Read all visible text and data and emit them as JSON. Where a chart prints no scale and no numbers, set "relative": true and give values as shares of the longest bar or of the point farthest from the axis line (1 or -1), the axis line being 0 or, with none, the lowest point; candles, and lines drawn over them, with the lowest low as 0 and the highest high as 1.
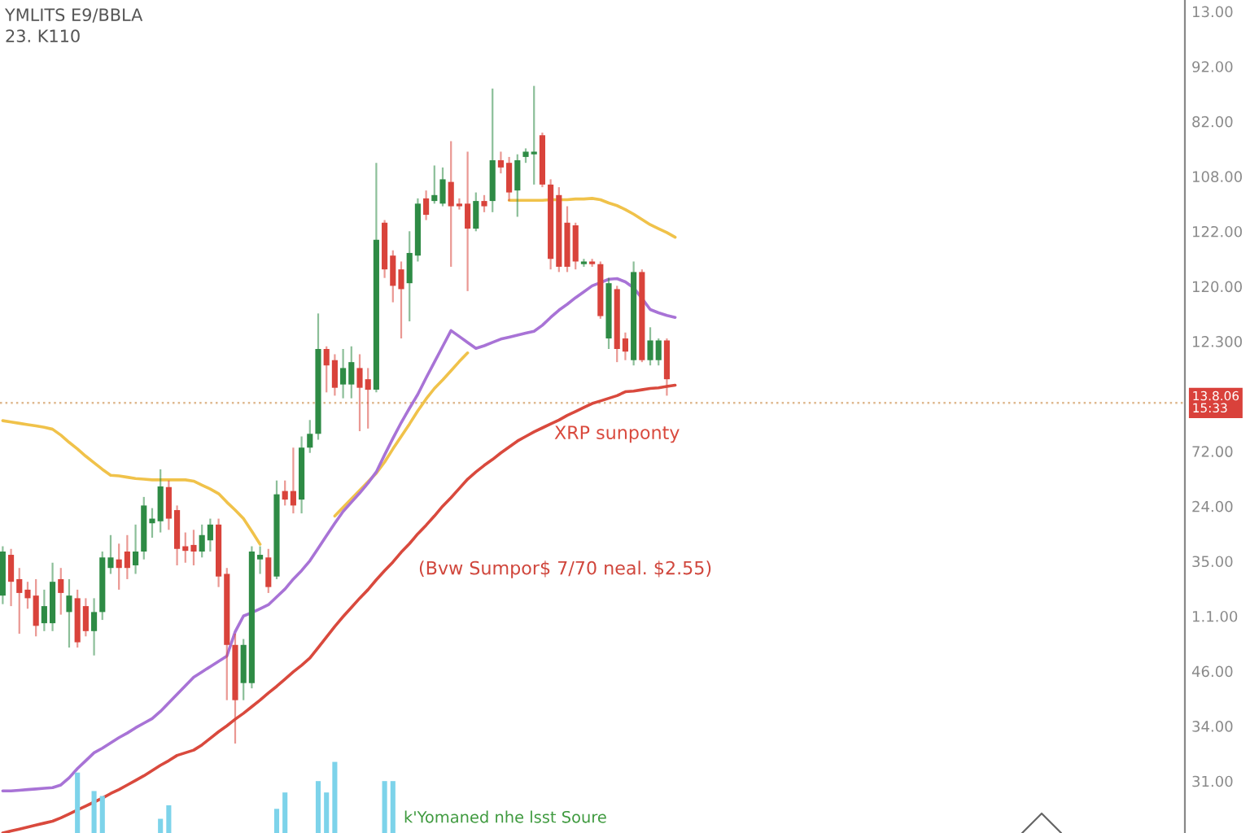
{
  "chart_data": [
    {
      "type": "candlestick",
      "title": "YMLITS E9/BBLA",
      "subtitle": "23. K110",
      "relative": true,
      "categories": [
        null,
        null,
        null,
        null,
        null,
        null,
        null,
        null,
        null,
        null,
        null,
        null,
        null,
        null,
        null,
        null,
        null,
        null,
        null,
        null,
        null,
        null,
        null,
        null,
        null,
        null,
        null,
        null,
        null,
        null,
        null,
        null,
        null,
        null,
        null,
        null,
        null,
        null,
        null,
        null,
        null,
        null,
        null,
        null,
        null,
        null,
        null,
        null,
        null,
        null,
        null,
        null,
        null,
        null,
        null,
        null,
        null,
        null,
        null,
        null,
        null,
        null,
        null,
        null,
        null,
        null,
        null,
        null,
        null,
        null,
        null,
        null,
        null,
        null,
        null,
        null,
        null,
        null,
        null,
        null,
        null,
        null
      ],
      "ohlc": [
        [
          0.225,
          0.3,
          0.212,
          0.292
        ],
        [
          0.287,
          0.296,
          0.209,
          0.246
        ],
        [
          0.25,
          0.267,
          0.167,
          0.229
        ],
        [
          0.234,
          0.246,
          0.205,
          0.221
        ],
        [
          0.225,
          0.25,
          0.163,
          0.179
        ],
        [
          0.183,
          0.234,
          0.171,
          0.209
        ],
        [
          0.183,
          0.275,
          0.171,
          0.246
        ],
        [
          0.25,
          0.267,
          0.196,
          0.229
        ],
        [
          0.2,
          0.25,
          0.146,
          0.225
        ],
        [
          0.221,
          0.234,
          0.146,
          0.154
        ],
        [
          0.209,
          0.221,
          0.163,
          0.171
        ],
        [
          0.171,
          0.221,
          0.134,
          0.2
        ],
        [
          0.2,
          0.292,
          0.188,
          0.283
        ],
        [
          0.267,
          0.317,
          0.258,
          0.283
        ],
        [
          0.28,
          0.304,
          0.234,
          0.267
        ],
        [
          0.292,
          0.317,
          0.25,
          0.267
        ],
        [
          0.271,
          0.333,
          0.258,
          0.292
        ],
        [
          0.292,
          0.375,
          0.28,
          0.362
        ],
        [
          0.335,
          0.358,
          0.313,
          0.342
        ],
        [
          0.338,
          0.417,
          0.321,
          0.391
        ],
        [
          0.39,
          0.4,
          0.325,
          0.342
        ],
        [
          0.355,
          0.362,
          0.271,
          0.296
        ],
        [
          0.3,
          0.321,
          0.275,
          0.293
        ],
        [
          0.302,
          0.325,
          0.271,
          0.292
        ],
        [
          0.292,
          0.333,
          0.283,
          0.317
        ],
        [
          0.309,
          0.342,
          0.292,
          0.333
        ],
        [
          0.333,
          0.342,
          0.238,
          0.254
        ],
        [
          0.258,
          0.267,
          0.066,
          0.15
        ],
        [
          0.15,
          0.167,
          0.0,
          0.066
        ],
        [
          0.092,
          0.159,
          0.066,
          0.15
        ],
        [
          0.092,
          0.3,
          0.084,
          0.292
        ],
        [
          0.28,
          0.3,
          0.258,
          0.287
        ],
        [
          0.283,
          0.296,
          0.229,
          0.238
        ],
        [
          0.254,
          0.4,
          0.25,
          0.379
        ],
        [
          0.384,
          0.4,
          0.362,
          0.371
        ],
        [
          0.384,
          0.45,
          0.35,
          0.362
        ],
        [
          0.371,
          0.467,
          0.35,
          0.45
        ],
        [
          0.45,
          0.492,
          0.442,
          0.471
        ],
        [
          0.471,
          0.654,
          0.462,
          0.6
        ],
        [
          0.6,
          0.604,
          0.534,
          0.575
        ],
        [
          0.583,
          0.592,
          0.529,
          0.541
        ],
        [
          0.546,
          0.6,
          0.525,
          0.571
        ],
        [
          0.546,
          0.604,
          0.525,
          0.58
        ],
        [
          0.571,
          0.592,
          0.475,
          0.541
        ],
        [
          0.554,
          0.571,
          0.479,
          0.538
        ],
        [
          0.538,
          0.883,
          0.534,
          0.766
        ],
        [
          0.792,
          0.796,
          0.708,
          0.721
        ],
        [
          0.742,
          0.75,
          0.671,
          0.696
        ],
        [
          0.721,
          0.733,
          0.616,
          0.691
        ],
        [
          0.7,
          0.779,
          0.642,
          0.746
        ],
        [
          0.742,
          0.829,
          0.733,
          0.821
        ],
        [
          0.829,
          0.841,
          0.796,
          0.804
        ],
        [
          0.825,
          0.879,
          0.821,
          0.834
        ],
        [
          0.821,
          0.876,
          0.817,
          0.858
        ],
        [
          0.854,
          0.916,
          0.725,
          0.817
        ],
        [
          0.821,
          0.829,
          0.812,
          0.817
        ],
        [
          0.821,
          0.9,
          0.688,
          0.783
        ],
        [
          0.783,
          0.838,
          0.779,
          0.825
        ],
        [
          0.825,
          0.834,
          0.808,
          0.817
        ],
        [
          0.825,
          0.996,
          0.808,
          0.887
        ],
        [
          0.887,
          0.9,
          0.867,
          0.876
        ],
        [
          0.883,
          0.892,
          0.825,
          0.838
        ],
        [
          0.841,
          0.896,
          0.801,
          0.887
        ],
        [
          0.892,
          0.905,
          0.883,
          0.9
        ],
        [
          0.896,
          1.0,
          0.85,
          0.9
        ],
        [
          0.925,
          0.929,
          0.846,
          0.85
        ],
        [
          0.85,
          0.858,
          0.721,
          0.737
        ],
        [
          0.834,
          0.846,
          0.717,
          0.725
        ],
        [
          0.792,
          0.817,
          0.717,
          0.725
        ],
        [
          0.788,
          0.792,
          0.721,
          0.733
        ],
        [
          0.729,
          0.737,
          0.725,
          0.733
        ],
        [
          0.733,
          0.737,
          0.725,
          0.729
        ],
        [
          0.729,
          0.733,
          0.646,
          0.65
        ],
        [
          0.616,
          0.708,
          0.6,
          0.7
        ],
        [
          0.691,
          0.696,
          0.58,
          0.6
        ],
        [
          0.616,
          0.625,
          0.583,
          0.596
        ],
        [
          0.583,
          0.733,
          0.575,
          0.717
        ],
        [
          0.717,
          0.721,
          0.58,
          0.583
        ],
        [
          0.583,
          0.633,
          0.575,
          0.613
        ],
        [
          0.583,
          0.616,
          0.575,
          0.613
        ],
        [
          0.613,
          0.616,
          0.529,
          0.554
        ],
        null
      ],
      "colors": [
        "#2e8b45",
        "#d9433b",
        "#d9433b",
        "#d9433b",
        "#d9433b",
        "#2e8b45",
        "#2e8b45",
        "#d9433b",
        "#2e8b45",
        "#d9433b",
        "#d9433b",
        "#2e8b45",
        "#2e8b45",
        "#2e8b45",
        "#d9433b",
        "#d9433b",
        "#2e8b45",
        "#2e8b45",
        "#2e8b45",
        "#2e8b45",
        "#d9433b",
        "#d9433b",
        "#d9433b",
        "#d9433b",
        "#2e8b45",
        "#2e8b45",
        "#d9433b",
        "#d9433b",
        "#d9433b",
        "#2e8b45",
        "#2e8b45",
        "#2e8b45",
        "#d9433b",
        "#2e8b45",
        "#d9433b",
        "#d9433b",
        "#2e8b45",
        "#2e8b45",
        "#2e8b45",
        "#d9433b",
        "#d9433b",
        "#2e8b45",
        "#2e8b45",
        "#d9433b",
        "#d9433b",
        "#2e8b45",
        "#d9433b",
        "#d9433b",
        "#d9433b",
        "#2e8b45",
        "#2e8b45",
        "#d9433b",
        "#2e8b45",
        "#2e8b45",
        "#d9433b",
        "#d9433b",
        "#d9433b",
        "#2e8b45",
        "#d9433b",
        "#2e8b45",
        "#d9433b",
        "#d9433b",
        "#2e8b45",
        "#2e8b45",
        "#2e8b45",
        "#d9433b",
        "#d9433b",
        "#d9433b",
        "#d9433b",
        "#d9433b",
        "#2e8b45",
        "#d9433b",
        "#d9433b",
        "#2e8b45",
        "#d9433b",
        "#d9433b",
        "#2e8b45",
        "#d9433b",
        "#2e8b45",
        "#2e8b45",
        "#d9433b",
        null
      ],
      "series": [
        {
          "type": "line",
          "color": "#f0c24a",
          "values": [
            0.491,
            0.489,
            0.487,
            0.485,
            0.483,
            0.481,
            0.478,
            0.469,
            0.458,
            0.448,
            0.437,
            0.427,
            0.417,
            0.408,
            0.407,
            0.405,
            0.403,
            0.402,
            0.401,
            0.401,
            0.401,
            0.401,
            0.401,
            0.399,
            0.393,
            0.387,
            0.38,
            0.367,
            0.355,
            0.342,
            0.323,
            0.303,
            null,
            null,
            null,
            null,
            null,
            null,
            null,
            null,
            0.346,
            0.359,
            0.372,
            0.385,
            0.398,
            0.411,
            0.428,
            0.448,
            0.467,
            0.486,
            0.506,
            0.524,
            0.54,
            0.553,
            0.567,
            0.581,
            0.594,
            null,
            null,
            null,
            null,
            0.826,
            0.826,
            0.826,
            0.826,
            0.826,
            0.827,
            0.827,
            0.827,
            0.828,
            0.828,
            0.829,
            0.827,
            0.822,
            0.818,
            0.812,
            0.805,
            0.797,
            0.789,
            0.783,
            0.777,
            0.77
          ]
        },
        {
          "type": "line",
          "color": "#a873d6",
          "values": [
            -0.072,
            -0.072,
            -0.071,
            -0.07,
            -0.069,
            -0.068,
            -0.067,
            -0.063,
            -0.052,
            -0.038,
            -0.026,
            -0.014,
            -0.007,
            0.001,
            0.009,
            0.016,
            0.024,
            0.031,
            0.038,
            0.049,
            0.062,
            0.075,
            0.088,
            0.101,
            0.109,
            0.117,
            0.125,
            0.133,
            0.17,
            0.194,
            0.199,
            0.205,
            0.211,
            0.223,
            0.235,
            0.25,
            0.263,
            0.278,
            0.297,
            0.316,
            0.335,
            0.353,
            0.367,
            0.381,
            0.396,
            0.413,
            0.439,
            0.464,
            0.488,
            0.51,
            0.531,
            0.556,
            0.58,
            0.604,
            0.628,
            0.619,
            0.61,
            0.601,
            0.605,
            0.61,
            0.615,
            0.618,
            0.621,
            0.624,
            0.627,
            0.636,
            0.648,
            0.659,
            0.668,
            0.678,
            0.687,
            0.696,
            0.701,
            0.706,
            0.707,
            0.702,
            0.693,
            0.677,
            0.66,
            0.655,
            0.651,
            0.648
          ]
        },
        {
          "type": "line",
          "name": "XRP sunponty",
          "color": "#d9493d",
          "values": [
            -0.136,
            -0.133,
            -0.13,
            -0.127,
            -0.124,
            -0.121,
            -0.118,
            -0.113,
            -0.107,
            -0.101,
            -0.095,
            -0.089,
            -0.083,
            -0.076,
            -0.07,
            -0.063,
            -0.056,
            -0.049,
            -0.041,
            -0.033,
            -0.026,
            -0.018,
            -0.014,
            -0.01,
            -0.002,
            0.008,
            0.018,
            0.027,
            0.037,
            0.046,
            0.056,
            0.066,
            0.077,
            0.087,
            0.098,
            0.109,
            0.119,
            0.13,
            0.146,
            0.162,
            0.178,
            0.193,
            0.207,
            0.221,
            0.234,
            0.249,
            0.263,
            0.276,
            0.291,
            0.304,
            0.319,
            0.332,
            0.346,
            0.361,
            0.374,
            0.388,
            0.402,
            0.413,
            0.423,
            0.432,
            0.442,
            0.451,
            0.46,
            0.467,
            0.474,
            0.48,
            0.486,
            0.492,
            0.499,
            0.505,
            0.511,
            0.517,
            0.521,
            0.525,
            0.529,
            0.535,
            0.536,
            0.538,
            0.54,
            0.541,
            0.543,
            0.545
          ]
        }
      ],
      "ref_lines": [
        {
          "axis": "y",
          "value": 0.518,
          "color": "#dfb88e",
          "line_style": "dotted"
        }
      ],
      "annotations": [
        "(Bvw Sumpor$ 7/70 neal. $2.55)",
        "k'Yomaned nhe lsst Soure",
        "13.8.06\n15:33",
        "13.00",
        "92.00",
        "82.00",
        "108.00",
        "122.00",
        "120.00",
        "12.300",
        "72.00",
        "24.00",
        "35.00",
        "1.1.00",
        "46.00",
        "34.00",
        "31.00"
      ]
    },
    {
      "type": "bar",
      "relative": true,
      "color": "#7dd3ea",
      "categories": [
        null,
        null,
        null,
        null,
        null,
        null,
        null,
        null,
        null,
        null,
        null,
        null,
        null,
        null,
        null,
        null,
        null,
        null,
        null,
        null,
        null,
        null,
        null,
        null,
        null,
        null,
        null,
        null,
        null,
        null,
        null,
        null,
        null,
        null,
        null,
        null,
        null,
        null,
        null,
        null,
        null,
        null,
        null,
        null,
        null,
        null,
        null,
        null,
        null,
        null,
        null,
        null,
        null,
        null,
        null,
        null,
        null,
        null,
        null,
        null,
        null,
        null,
        null,
        null,
        null,
        null,
        null,
        null,
        null,
        null,
        null,
        null,
        null,
        null,
        null,
        null,
        null,
        null,
        null,
        null,
        null,
        null
      ],
      "values": [
        null,
        null,
        null,
        null,
        null,
        null,
        null,
        null,
        null,
        0.85,
        null,
        0.59,
        0.52,
        null,
        null,
        null,
        null,
        null,
        null,
        0.2,
        0.39,
        null,
        null,
        null,
        null,
        null,
        null,
        null,
        null,
        null,
        null,
        null,
        null,
        0.34,
        0.57,
        null,
        null,
        null,
        0.73,
        0.57,
        1.0,
        null,
        null,
        null,
        null,
        null,
        0.73,
        0.73,
        null,
        null,
        null,
        null,
        null,
        null,
        null,
        null,
        null,
        null,
        null,
        null,
        null,
        null,
        null,
        null,
        null,
        null,
        null,
        null,
        null,
        null,
        null,
        null,
        null,
        null,
        null,
        null,
        null,
        null,
        null,
        null,
        null,
        null
      ]
    }
  ]
}
